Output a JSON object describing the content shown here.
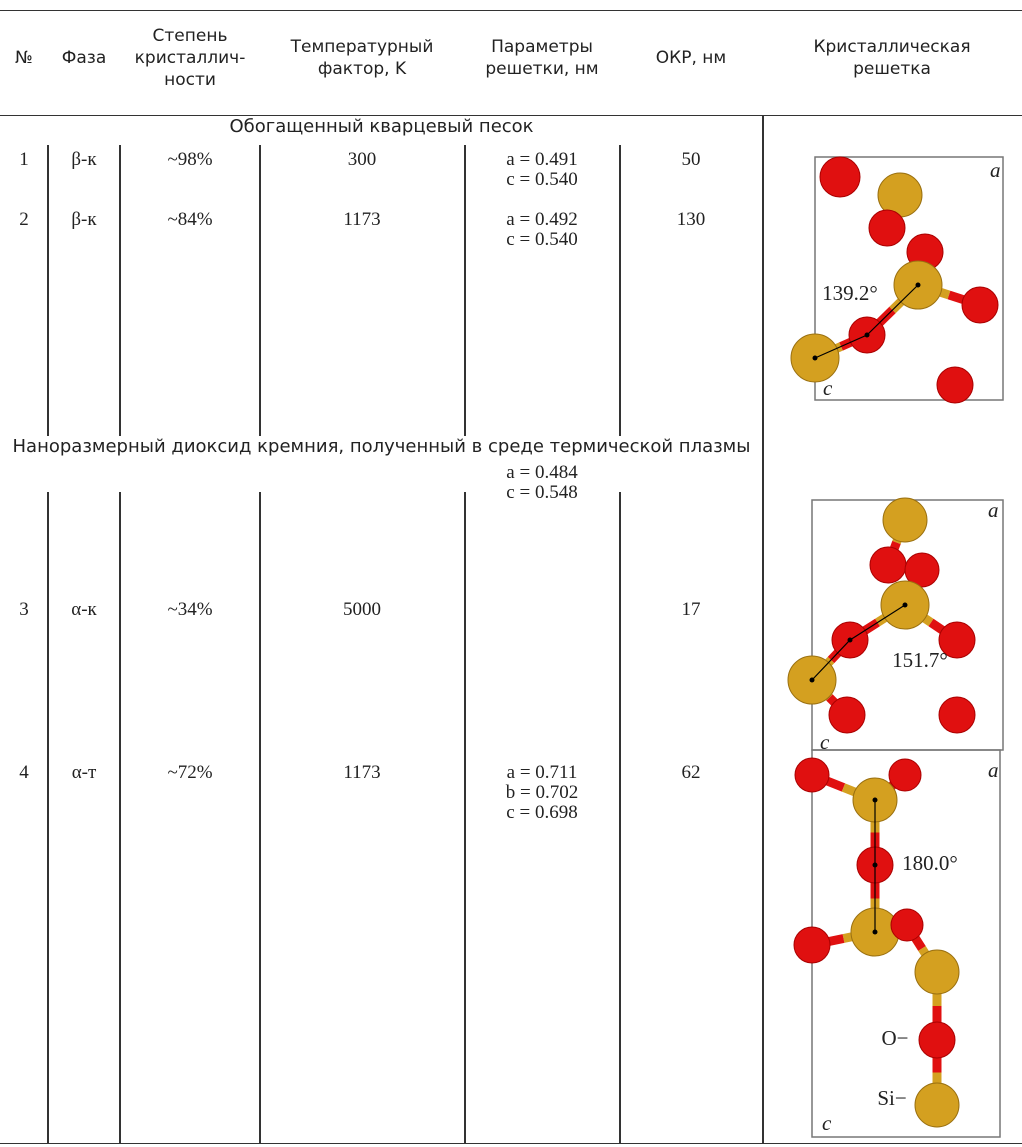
{
  "header": {
    "columns": [
      [
        "№"
      ],
      [
        "Фаза"
      ],
      [
        "Степень",
        "кристаллич-",
        "ности"
      ],
      [
        "Температурный",
        "фактор, K"
      ],
      [
        "Параметры",
        "решетки, нм"
      ],
      [
        "ОКР, нм"
      ],
      [
        "Кристаллическая",
        "решетка"
      ]
    ]
  },
  "sections": [
    {
      "title": "Обогащенный кварцевый песок",
      "rows": [
        {
          "num": "1",
          "phase": "β-к",
          "crystallinity": "~98%",
          "temperature": 300,
          "params": [
            "a = 0.491",
            "c = 0.540"
          ],
          "okr": 50
        },
        {
          "num": "2",
          "phase": "β-к",
          "crystallinity": "~84%",
          "temperature": 1173,
          "params": [
            "a = 0.492",
            "c = 0.540"
          ],
          "okr": 130
        }
      ]
    },
    {
      "title": "Наноразмерный диоксид кремния, полученный в среде термической плазмы",
      "rows": [
        {
          "num": "3",
          "phase": "α-к",
          "crystallinity": "~34%",
          "temperature": 5000,
          "params": [
            "a = 0.484",
            "c = 0.548"
          ],
          "okr": 17
        },
        {
          "num": "4",
          "phase": "α-т",
          "crystallinity": "~72%",
          "temperature": 1173,
          "params": [
            "a = 0.711",
            "b = 0.702",
            "c = 0.698"
          ],
          "okr": 62
        }
      ]
    }
  ],
  "structures": [
    {
      "angle": "139.2°",
      "axes": [
        "a",
        "c"
      ]
    },
    {
      "angle": "151.7°",
      "axes": [
        "a",
        "c"
      ]
    },
    {
      "angle": "180.0°",
      "axes": [
        "a",
        "c"
      ],
      "atom_labels": [
        "O−",
        "Si−"
      ]
    }
  ]
}
